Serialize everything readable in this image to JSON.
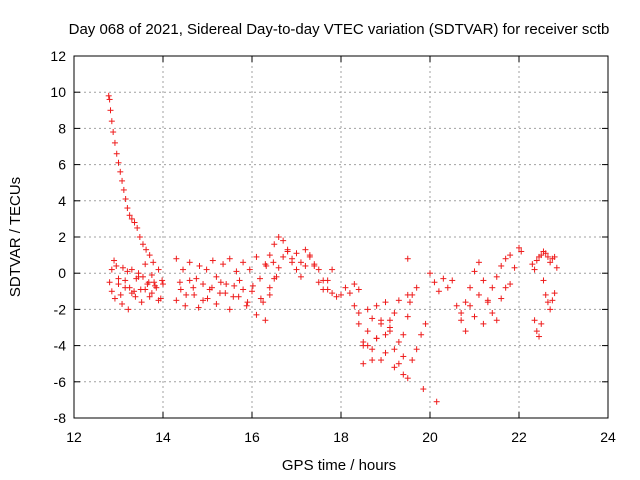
{
  "chart_data": {
    "type": "scatter",
    "title": "Day 068 of 2021, Sidereal Day-to-day VTEC variation (SDTVAR) for receiver sctb",
    "xlabel": "GPS time / hours",
    "ylabel": "SDTVAR / TECUs",
    "xlim": [
      12,
      24
    ],
    "ylim": [
      -8,
      12
    ],
    "xticks": [
      "12",
      "14",
      "16",
      "18",
      "20",
      "22",
      "24"
    ],
    "yticks": [
      "-8",
      "-6",
      "-4",
      "-2",
      "0",
      "2",
      "4",
      "6",
      "8",
      "10",
      "12"
    ],
    "grid": true,
    "marker": "+",
    "color": "#ee1c1c",
    "series": [
      {
        "name": "SDTVAR",
        "x": [
          12.78,
          12.8,
          12.82,
          12.85,
          12.88,
          12.92,
          12.96,
          13.0,
          13.04,
          13.08,
          13.12,
          13.16,
          13.2,
          13.25,
          13.3,
          13.36,
          13.42,
          13.48,
          13.55,
          13.62,
          13.7,
          13.78,
          12.8,
          12.85,
          12.9,
          12.95,
          13.0,
          13.05,
          13.1,
          13.15,
          13.2,
          13.25,
          13.3,
          13.35,
          13.4,
          13.45,
          13.5,
          13.55,
          13.6,
          13.65,
          13.7,
          13.75,
          13.8,
          13.85,
          13.9,
          13.95,
          14.0,
          12.85,
          12.92,
          13.0,
          13.08,
          13.15,
          13.22,
          13.3,
          13.38,
          13.45,
          13.52,
          13.6,
          13.68,
          13.75,
          13.82,
          13.9,
          13.98,
          14.3,
          14.38,
          14.45,
          14.52,
          14.6,
          14.68,
          14.75,
          14.82,
          14.9,
          14.98,
          15.05,
          15.12,
          15.2,
          15.28,
          15.35,
          15.42,
          15.5,
          15.58,
          15.65,
          15.72,
          15.8,
          15.88,
          15.95,
          16.02,
          16.1,
          16.18,
          16.25,
          16.32,
          16.4,
          16.48,
          16.55,
          14.3,
          14.4,
          14.5,
          14.6,
          14.7,
          14.8,
          14.9,
          15.0,
          15.1,
          15.2,
          15.3,
          15.4,
          15.5,
          15.6,
          15.7,
          15.8,
          15.9,
          16.0,
          16.1,
          16.2,
          16.3,
          16.4,
          16.3,
          16.4,
          16.5,
          16.6,
          16.7,
          16.8,
          16.9,
          17.0,
          17.1,
          17.2,
          17.3,
          17.4,
          17.5,
          17.6,
          17.7,
          17.8,
          17.9,
          18.0,
          18.1,
          18.2,
          18.3,
          18.4,
          16.5,
          16.6,
          16.7,
          16.8,
          16.9,
          17.0,
          17.1,
          17.2,
          17.3,
          17.4,
          17.5,
          17.6,
          17.7,
          17.8,
          18.3,
          18.4,
          18.5,
          18.6,
          18.7,
          18.8,
          18.9,
          19.0,
          19.1,
          19.2,
          19.3,
          19.4,
          19.5,
          19.6,
          19.7,
          19.8,
          19.9,
          18.4,
          18.5,
          18.6,
          18.7,
          18.8,
          18.9,
          19.0,
          19.1,
          19.2,
          19.3,
          19.4,
          19.5,
          18.5,
          18.6,
          18.7,
          18.8,
          18.9,
          19.0,
          19.1,
          19.2,
          19.3,
          19.4,
          19.5,
          19.6,
          19.5,
          19.55,
          19.7,
          19.85,
          20.15,
          20.0,
          20.1,
          20.2,
          20.3,
          20.4,
          20.5,
          20.6,
          20.7,
          20.8,
          20.9,
          21.0,
          21.1,
          21.2,
          21.3,
          21.4,
          21.5,
          21.6,
          21.7,
          21.8,
          21.9,
          20.7,
          20.8,
          20.9,
          21.0,
          21.1,
          21.2,
          21.3,
          21.4,
          21.5,
          21.6,
          21.7,
          21.8,
          22.0,
          22.05,
          22.3,
          22.35,
          22.4,
          22.45,
          22.5,
          22.55,
          22.6,
          22.65,
          22.7,
          22.75,
          22.8,
          22.85,
          22.35,
          22.4,
          22.45,
          22.5,
          22.55,
          22.6,
          22.65,
          22.7,
          22.75,
          22.8
        ],
        "y": [
          9.8,
          9.6,
          9.0,
          8.4,
          7.8,
          7.2,
          6.6,
          6.1,
          5.6,
          5.1,
          4.6,
          4.1,
          3.6,
          3.2,
          3.0,
          2.8,
          2.5,
          2.0,
          1.6,
          1.3,
          1.0,
          0.6,
          -0.5,
          0.2,
          0.7,
          0.4,
          -0.6,
          -1.2,
          0.3,
          -0.4,
          0.1,
          -0.8,
          0.2,
          -1.0,
          -0.3,
          0.0,
          -0.9,
          -0.2,
          0.5,
          -0.6,
          -1.3,
          -0.1,
          -0.5,
          -0.8,
          0.2,
          -1.4,
          -0.6,
          -1.0,
          -1.4,
          -0.3,
          -1.7,
          -0.8,
          -2.0,
          -1.1,
          -1.3,
          -0.2,
          -1.6,
          -0.9,
          -0.5,
          -1.1,
          -0.7,
          -1.5,
          -0.4,
          0.8,
          -0.5,
          0.2,
          -1.2,
          0.6,
          -0.8,
          -0.3,
          0.4,
          -1.5,
          0.2,
          -0.9,
          0.7,
          -0.2,
          -1.1,
          0.5,
          -0.6,
          0.8,
          -1.3,
          0.1,
          -0.4,
          0.6,
          -1.8,
          0.2,
          -0.7,
          0.9,
          -0.3,
          -1.6,
          0.4,
          -0.8,
          0.6,
          -0.2,
          -1.5,
          -0.9,
          -1.8,
          -0.4,
          -1.2,
          -1.9,
          -0.6,
          -1.4,
          -0.8,
          -1.7,
          -0.5,
          -1.1,
          -2.0,
          -0.7,
          -1.3,
          -0.9,
          -1.6,
          -1.0,
          -2.3,
          -1.4,
          -2.6,
          -1.2,
          0.5,
          1.0,
          1.6,
          2.0,
          1.8,
          1.2,
          0.8,
          1.1,
          0.6,
          1.3,
          0.9,
          0.4,
          0.2,
          -0.4,
          -0.9,
          -1.1,
          -1.3,
          -1.2,
          -0.8,
          -1.1,
          -0.6,
          -0.9,
          -0.3,
          0.3,
          0.9,
          1.3,
          0.6,
          0.2,
          -0.2,
          0.4,
          1.0,
          0.5,
          -0.5,
          -0.9,
          -0.4,
          0.2,
          -1.8,
          -2.8,
          -4.0,
          -3.2,
          -2.5,
          -3.6,
          -4.8,
          -3.4,
          -2.6,
          -4.2,
          -5.0,
          -5.6,
          -5.8,
          -4.8,
          -4.2,
          -3.4,
          -2.8,
          -2.2,
          -3.8,
          -2.0,
          -4.2,
          -1.8,
          -2.6,
          -1.6,
          -3.0,
          -2.2,
          -1.5,
          -3.4,
          -1.2,
          -5.0,
          -4.0,
          -4.8,
          -3.6,
          -2.8,
          -4.4,
          -3.2,
          -5.2,
          -3.8,
          -4.6,
          -2.4,
          -1.2,
          0.8,
          -1.6,
          -0.8,
          -6.4,
          -7.1,
          0.0,
          -0.5,
          -1.0,
          -0.3,
          -0.8,
          -0.4,
          -1.8,
          -2.2,
          -1.6,
          -0.8,
          0.1,
          0.6,
          -0.4,
          -1.5,
          -0.8,
          -0.2,
          0.4,
          0.8,
          1.0,
          0.3,
          -2.6,
          -3.2,
          -1.8,
          -2.4,
          -1.2,
          -2.8,
          -1.6,
          -2.2,
          -2.6,
          -1.4,
          -0.8,
          -0.6,
          1.4,
          1.2,
          0.5,
          0.2,
          0.7,
          0.9,
          1.0,
          1.2,
          1.1,
          0.9,
          0.6,
          0.8,
          0.9,
          0.3,
          -2.6,
          -3.2,
          -3.5,
          -2.8,
          -0.4,
          -1.2,
          -1.6,
          -2.0,
          -1.5,
          -1.1
        ]
      }
    ]
  }
}
